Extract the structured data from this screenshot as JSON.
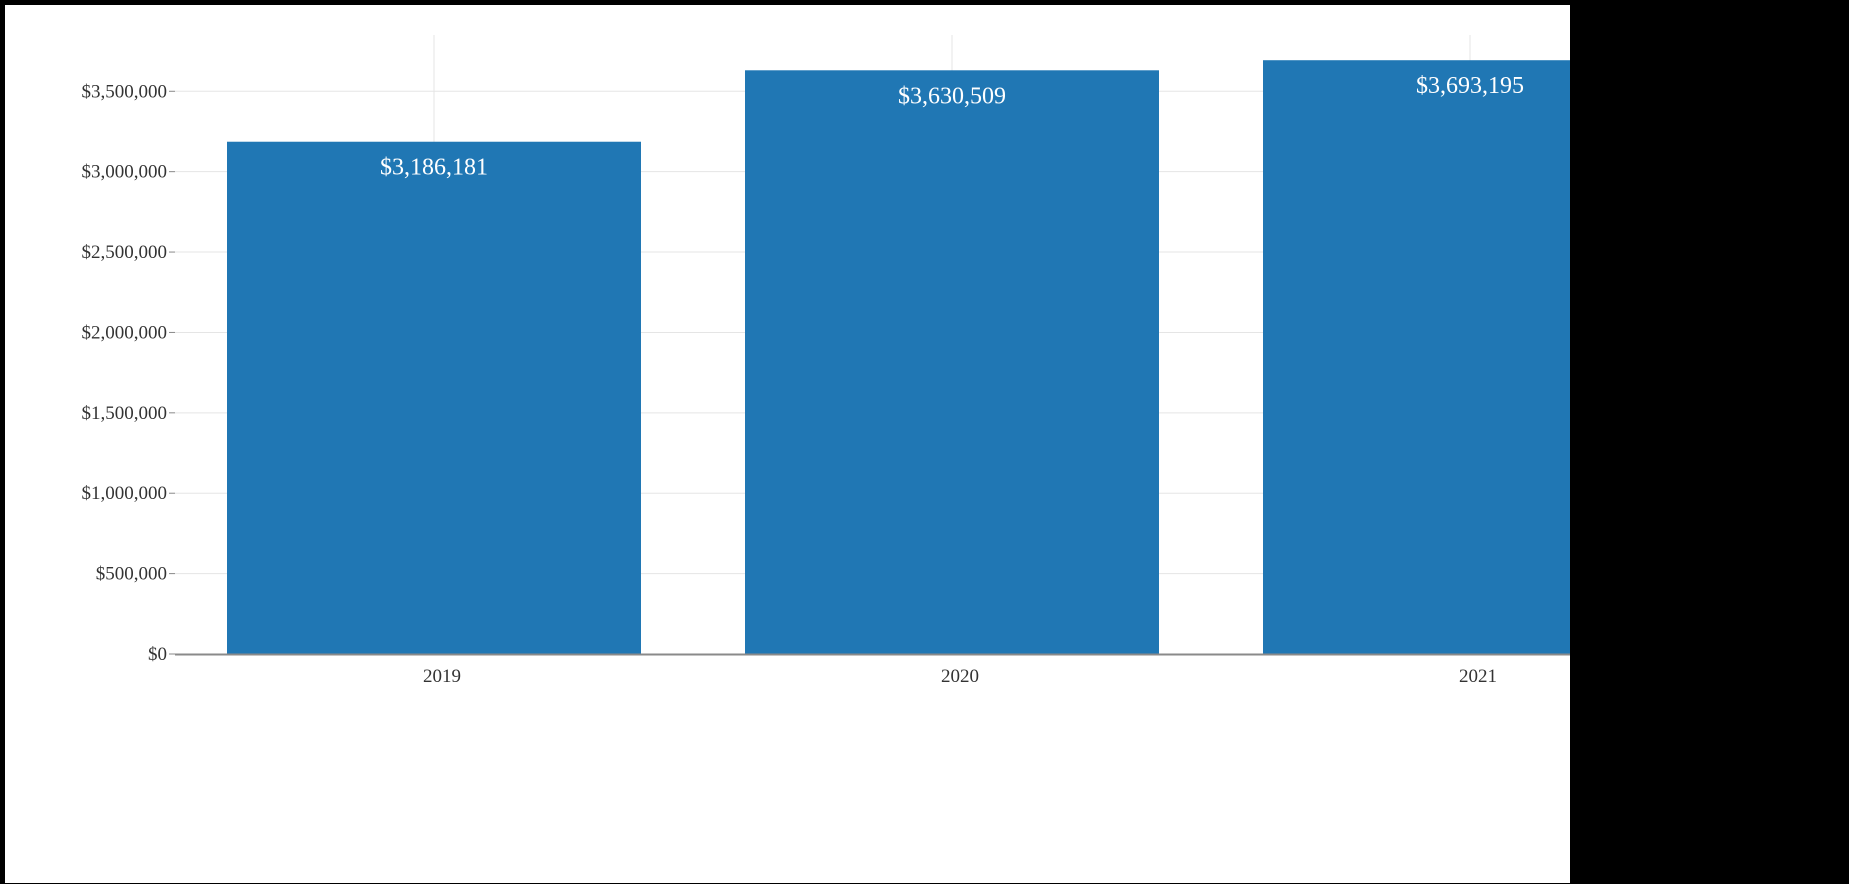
{
  "chart_data": {
    "type": "bar",
    "title": "",
    "xlabel": "",
    "ylabel": "",
    "categories": [
      "2019",
      "2020",
      "2021"
    ],
    "values": [
      3186181,
      3630509,
      3693195
    ],
    "value_labels": [
      "$3,186,181",
      "$3,630,509",
      "$3,693,195"
    ],
    "ylim": [
      0,
      3850000
    ],
    "yticks": [
      0,
      500000,
      1000000,
      1500000,
      2000000,
      2500000,
      3000000,
      3500000
    ],
    "ytick_labels": [
      "$0",
      "$500,000",
      "$1,000,000",
      "$1,500,000",
      "$2,000,000",
      "$2,500,000",
      "$3,000,000",
      "$3,500,000"
    ],
    "grid": true,
    "legend": "none",
    "bar_color": "#2077b4",
    "label_color": "#ffffff"
  }
}
